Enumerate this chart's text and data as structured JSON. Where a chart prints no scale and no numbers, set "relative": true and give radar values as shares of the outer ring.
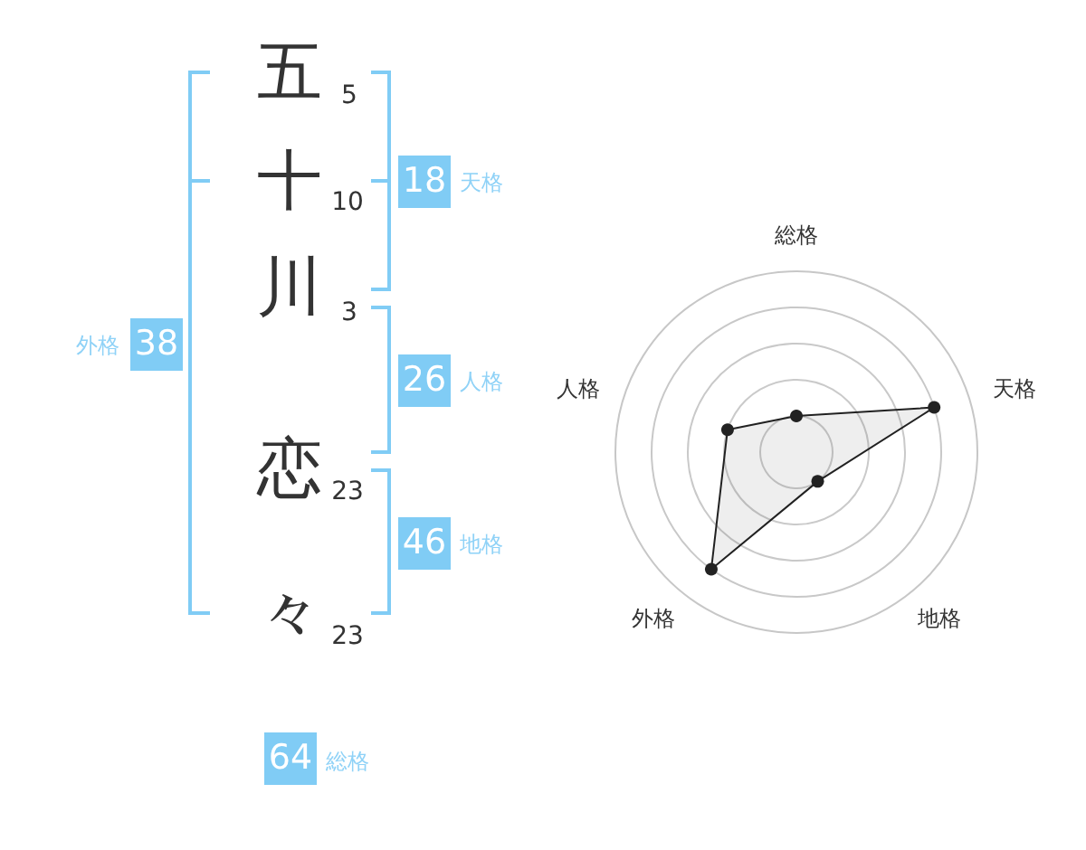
{
  "chart_data": [
    {
      "type": "other",
      "annotations": [
        "五",
        "5",
        "十",
        "10",
        "川",
        "3",
        "恋",
        "23",
        "々",
        "23",
        "18",
        "天格",
        "26",
        "人格",
        "46",
        "地格",
        "38",
        "外格",
        "64",
        "総格"
      ]
    },
    {
      "type": "radar",
      "categories": [
        "総格",
        "天格",
        "地格",
        "外格",
        "人格"
      ],
      "relative": true,
      "grid": true,
      "marker": "circle",
      "line_style": "solid",
      "series": [
        {
          "color": "#222222",
          "values": [
            0.2,
            0.8,
            0.2,
            0.8,
            0.4
          ]
        }
      ]
    }
  ]
}
